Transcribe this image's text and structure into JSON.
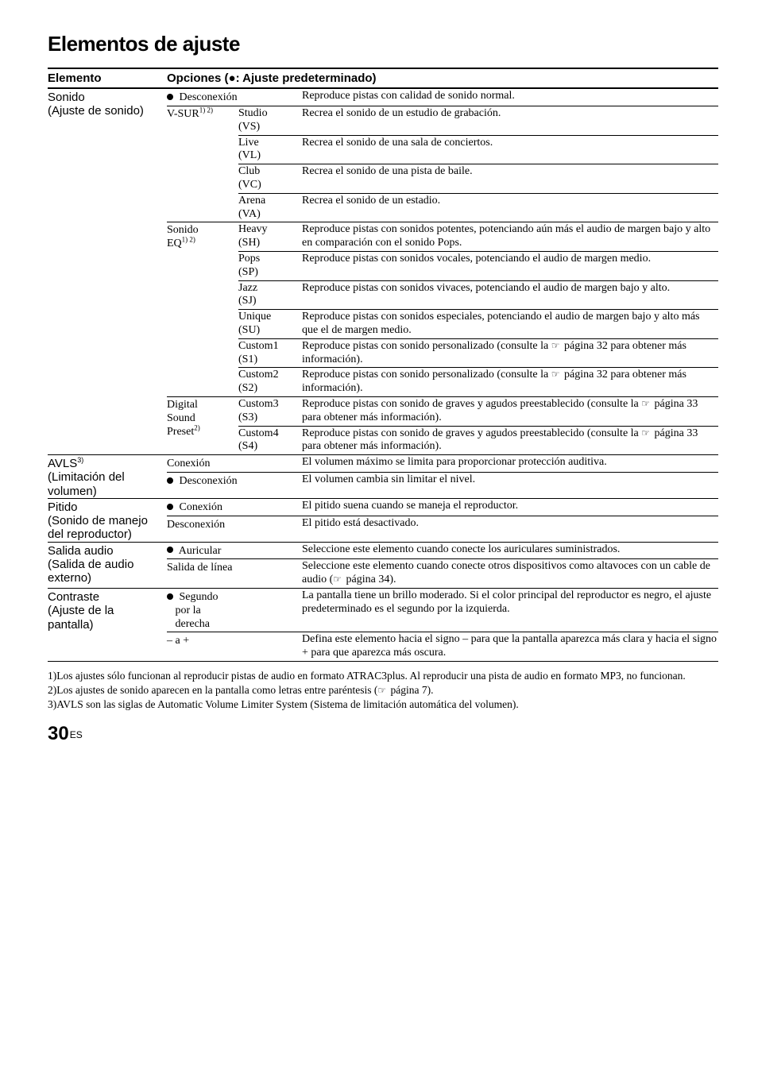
{
  "title": "Elementos de ajuste",
  "header": {
    "elem": "Elemento",
    "opts": "Opciones (●: Ajuste predeterminado)"
  },
  "sonido": {
    "label_line1": "Sonido",
    "label_line2": "(Ajuste de sonido)",
    "descn": {
      "opt": "Desconexión",
      "desc": "Reproduce pistas con calidad de sonido normal."
    },
    "vsur": {
      "opt": "V-SUR",
      "sup": "1) 2)",
      "rows": [
        {
          "sub": "Studio",
          "p": "(VS)",
          "desc": "Recrea el sonido de un estudio de grabación."
        },
        {
          "sub": "Live",
          "p": "(VL)",
          "desc": "Recrea el sonido de una sala de conciertos."
        },
        {
          "sub": "Club",
          "p": "(VC)",
          "desc": "Recrea el sonido de una pista de baile."
        },
        {
          "sub": "Arena",
          "p": "(VA)",
          "desc": "Recrea el sonido de un estadio."
        }
      ]
    },
    "eq": {
      "opt1": "Sonido",
      "opt2": "EQ",
      "sup": "1) 2)",
      "rows": [
        {
          "sub": "Heavy",
          "p": "(SH)",
          "desc": "Reproduce pistas con sonidos potentes, potenciando aún más el audio de margen bajo y alto en comparación con el sonido Pops."
        },
        {
          "sub": "Pops",
          "p": "(SP)",
          "desc": "Reproduce pistas con sonidos vocales, potenciando el audio de margen medio."
        },
        {
          "sub": "Jazz",
          "p": "(SJ)",
          "desc": "Reproduce pistas con sonidos vivaces, potenciando el audio de margen bajo y alto."
        },
        {
          "sub": "Unique",
          "p": "(SU)",
          "desc": "Reproduce pistas con sonidos especiales, potenciando el audio de margen bajo y alto más que el de margen medio."
        },
        {
          "sub": "Custom1",
          "p": "(S1)",
          "desc_pre": "Reproduce pistas con sonido personalizado (consulte la ",
          "desc_post": " página 32 para obtener más información)."
        },
        {
          "sub": "Custom2",
          "p": "(S2)",
          "desc_pre": "Reproduce pistas con sonido personalizado (consulte la ",
          "desc_post": " página 32 para obtener más información)."
        }
      ]
    },
    "dsp": {
      "opt1": "Digital",
      "opt2": "Sound",
      "opt3": "Preset",
      "sup": "2)",
      "rows": [
        {
          "sub": "Custom3",
          "p": "(S3)",
          "desc_pre": "Reproduce pistas con sonido de graves y agudos preestablecido (consulte la ",
          "desc_post": " página 33 para obtener más información)."
        },
        {
          "sub": "Custom4",
          "p": "(S4)",
          "desc_pre": "Reproduce pistas con sonido de graves y agudos preestablecido (consulte la ",
          "desc_post": " página 33 para obtener más información)."
        }
      ]
    }
  },
  "avls": {
    "label_line1": "AVLS",
    "sup": "3)",
    "label_line2": "(Limitación del",
    "label_line3": "volumen)",
    "rows": [
      {
        "opt": "Conexión",
        "desc": "El volumen máximo se limita para proporcionar protección auditiva."
      },
      {
        "opt": "Desconexión",
        "bullet": true,
        "desc": "El volumen cambia sin limitar el nivel."
      }
    ]
  },
  "pitido": {
    "label_line1": "Pitido",
    "label_line2": "(Sonido de manejo",
    "label_line3": "del reproductor)",
    "rows": [
      {
        "opt": "Conexión",
        "bullet": true,
        "desc": "El pitido suena cuando se maneja el reproductor."
      },
      {
        "opt": "Desconexión",
        "desc": "El pitido está desactivado."
      }
    ]
  },
  "salida": {
    "label_line1": "Salida audio",
    "label_line2": "(Salida de audio",
    "label_line3": "externo)",
    "rows": [
      {
        "opt": "Auricular",
        "bullet": true,
        "desc": "Seleccione este elemento cuando conecte los auriculares suministrados."
      },
      {
        "opt": "Salida de línea",
        "desc_pre": "Seleccione este elemento cuando conecte otros dispositivos como altavoces con un cable de audio (",
        "desc_post": " página 34)."
      }
    ]
  },
  "contraste": {
    "label_line1": "Contraste",
    "label_line2": "(Ajuste de la",
    "label_line3": "pantalla)",
    "rows": [
      {
        "opt1": "Segundo",
        "opt2": "por la",
        "opt3": "derecha",
        "bullet": true,
        "desc": "La pantalla tiene un brillo moderado. Si el color principal del reproductor es negro, el ajuste predeterminado es el segundo por la izquierda."
      },
      {
        "opt": "– a +",
        "desc": "Defina este elemento hacia el signo – para que la pantalla aparezca más clara y hacia el signo + para que aparezca más oscura."
      }
    ]
  },
  "footnotes": {
    "f1": "1)Los ajustes sólo funcionan al reproducir pistas de audio en formato ATRAC3plus. Al reproducir una pista de audio en formato MP3, no funcionan.",
    "f2_pre": "2)Los ajustes de sonido aparecen en la pantalla como letras entre paréntesis (",
    "f2_post": " página 7).",
    "f3": "3)AVLS son las siglas de Automatic Volume Limiter System (Sistema de limitación automática del volumen)."
  },
  "page": {
    "num": "30",
    "lang": "ES"
  }
}
